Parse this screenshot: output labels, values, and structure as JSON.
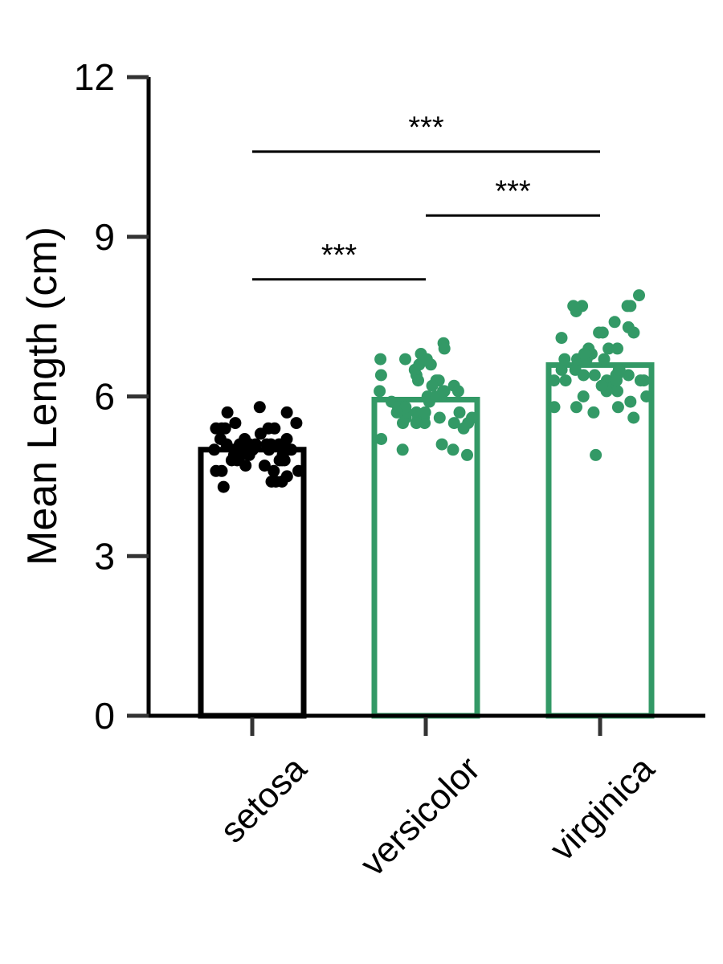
{
  "chart_data": {
    "type": "bar",
    "title": "",
    "xlabel": "",
    "ylabel": "Mean Length (cm)",
    "ylim": [
      0,
      12
    ],
    "yticks": [
      0,
      3,
      6,
      9,
      12
    ],
    "categories": [
      "setosa",
      "versicolor",
      "virginica"
    ],
    "values": [
      5.0,
      5.94,
      6.59
    ],
    "colors": [
      "#000000",
      "#339966",
      "#339966"
    ],
    "points": [
      [
        5.1,
        4.9,
        4.7,
        4.6,
        5.0,
        5.4,
        4.6,
        5.0,
        4.4,
        4.9,
        5.4,
        4.8,
        4.8,
        4.3,
        5.8,
        5.7,
        5.4,
        5.1,
        5.7,
        5.1,
        5.4,
        5.1,
        4.6,
        5.1,
        4.8,
        5.0,
        5.0,
        5.2,
        5.2,
        4.7,
        4.8,
        5.4,
        5.2,
        5.5,
        4.9,
        5.0,
        5.5,
        4.9,
        4.4,
        5.1,
        5.0,
        4.5,
        4.4,
        5.0,
        5.1,
        4.8,
        5.1,
        4.6,
        5.3,
        5.0
      ],
      [
        7.0,
        6.4,
        6.9,
        5.5,
        6.5,
        5.7,
        6.3,
        4.9,
        6.6,
        5.2,
        5.0,
        5.9,
        6.0,
        6.1,
        5.6,
        6.7,
        5.6,
        5.8,
        6.2,
        5.6,
        5.9,
        6.1,
        6.3,
        6.1,
        6.4,
        6.6,
        6.8,
        6.7,
        6.0,
        5.7,
        5.5,
        5.5,
        5.8,
        6.0,
        5.4,
        6.0,
        6.7,
        6.3,
        5.6,
        5.5,
        5.5,
        6.1,
        5.8,
        5.0,
        5.6,
        5.7,
        5.7,
        6.2,
        5.1,
        5.7
      ],
      [
        6.3,
        5.8,
        7.1,
        6.3,
        6.5,
        7.6,
        4.9,
        7.3,
        6.7,
        7.2,
        6.5,
        6.4,
        6.8,
        5.7,
        5.8,
        6.4,
        6.5,
        7.7,
        7.7,
        6.0,
        6.9,
        5.6,
        7.7,
        6.3,
        6.7,
        7.2,
        6.2,
        6.1,
        6.4,
        7.2,
        7.4,
        7.9,
        6.4,
        6.3,
        6.1,
        7.7,
        6.3,
        6.4,
        6.0,
        6.9,
        6.7,
        6.9,
        5.8,
        6.8,
        6.7,
        6.7,
        6.3,
        6.5,
        6.2,
        5.9
      ]
    ],
    "significance": [
      {
        "from": 0,
        "to": 1,
        "y": 8.2,
        "label": "***"
      },
      {
        "from": 1,
        "to": 2,
        "y": 9.4,
        "label": "***"
      },
      {
        "from": 0,
        "to": 2,
        "y": 10.6,
        "label": "***"
      }
    ]
  }
}
